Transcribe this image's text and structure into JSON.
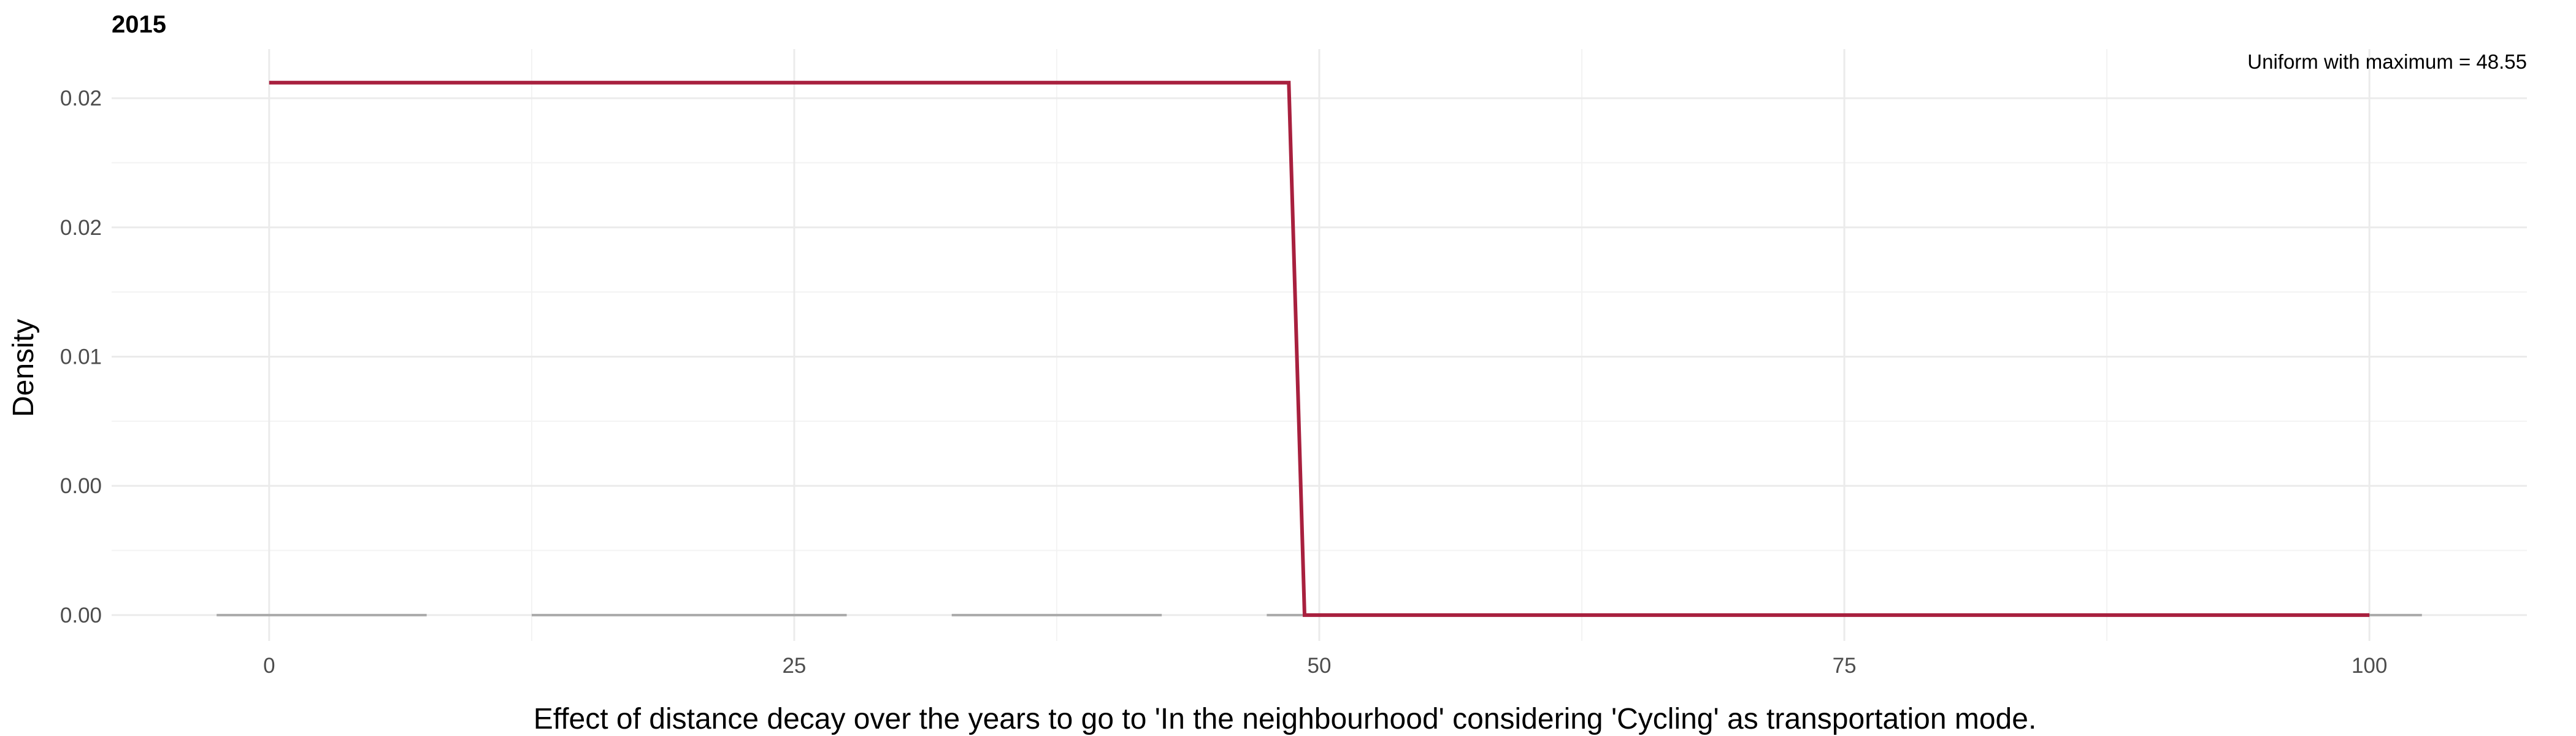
{
  "chart_data": {
    "type": "line",
    "title": "2015",
    "xlabel": "Effect of distance decay over the years to go to 'In the neighbourhood' considering 'Cycling' as transportation mode.",
    "ylabel": "Density",
    "annotation": "Uniform with maximum = 48.55",
    "xlim": [
      -7.5,
      107.5
    ],
    "ylim": [
      -0.001,
      0.0219
    ],
    "grid": true,
    "x_ticks": [
      0,
      25,
      50,
      75,
      100
    ],
    "x_tick_labels": [
      "0",
      "25",
      "50",
      "75",
      "100"
    ],
    "y_ticks": [
      0.0,
      0.005,
      0.01,
      0.015,
      0.02
    ],
    "y_tick_labels": [
      "0.00",
      "0.00",
      "0.01",
      "0.02",
      "0.02"
    ],
    "series": [
      {
        "color": "#a8203e",
        "x": [
          0,
          48.55,
          49.3,
          100
        ],
        "y": [
          0.0206,
          0.0206,
          0.0,
          0.0
        ]
      }
    ],
    "rug_segments": [
      [
        -2.5,
        7.5
      ],
      [
        12.5,
        27.5
      ],
      [
        32.5,
        42.5
      ],
      [
        47.5,
        102.5
      ]
    ]
  }
}
